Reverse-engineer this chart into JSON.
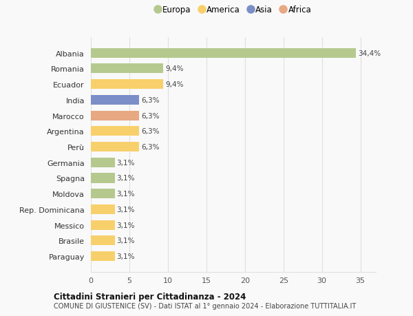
{
  "countries": [
    "Albania",
    "Romania",
    "Ecuador",
    "India",
    "Marocco",
    "Argentina",
    "Perù",
    "Germania",
    "Spagna",
    "Moldova",
    "Rep. Dominicana",
    "Messico",
    "Brasile",
    "Paraguay"
  ],
  "values": [
    34.4,
    9.4,
    9.4,
    6.3,
    6.3,
    6.3,
    6.3,
    3.1,
    3.1,
    3.1,
    3.1,
    3.1,
    3.1,
    3.1
  ],
  "labels": [
    "34,4%",
    "9,4%",
    "9,4%",
    "6,3%",
    "6,3%",
    "6,3%",
    "6,3%",
    "3,1%",
    "3,1%",
    "3,1%",
    "3,1%",
    "3,1%",
    "3,1%",
    "3,1%"
  ],
  "continents": [
    "Europa",
    "Europa",
    "America",
    "Asia",
    "Africa",
    "America",
    "America",
    "Europa",
    "Europa",
    "Europa",
    "America",
    "America",
    "America",
    "America"
  ],
  "colors": {
    "Europa": "#b5c98e",
    "America": "#f8d06b",
    "Asia": "#7b8ec8",
    "Africa": "#e8a882"
  },
  "legend_order": [
    "Europa",
    "America",
    "Asia",
    "Africa"
  ],
  "xlim": [
    0,
    37
  ],
  "xticks": [
    0,
    5,
    10,
    15,
    20,
    25,
    30,
    35
  ],
  "title1": "Cittadini Stranieri per Cittadinanza - 2024",
  "title2": "COMUNE DI GIUSTENICE (SV) - Dati ISTAT al 1° gennaio 2024 - Elaborazione TUTTITALIA.IT",
  "bg_color": "#f9f9f9",
  "grid_color": "#e0e0e0"
}
